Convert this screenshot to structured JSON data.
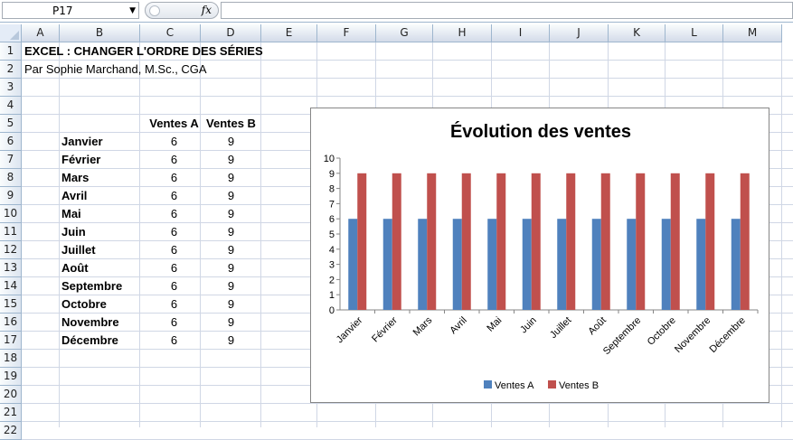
{
  "formula_bar": {
    "name_box": "P17",
    "fx_label": "fx",
    "formula": ""
  },
  "columns": [
    "A",
    "B",
    "C",
    "D",
    "E",
    "F",
    "G",
    "H",
    "I",
    "J",
    "K",
    "L",
    "M"
  ],
  "rows": [
    "1",
    "2",
    "3",
    "4",
    "5",
    "6",
    "7",
    "8",
    "9",
    "10",
    "11",
    "12",
    "13",
    "14",
    "15",
    "16",
    "17",
    "18",
    "19",
    "20",
    "21",
    "22"
  ],
  "sheet": {
    "title": "EXCEL : CHANGER L'ORDRE DES SÉRIES",
    "author": "Par Sophie Marchand, M.Sc., CGA",
    "header_a": "Ventes A",
    "header_b": "Ventes B",
    "table": [
      {
        "month": "Janvier",
        "a": "6",
        "b": "9"
      },
      {
        "month": "Février",
        "a": "6",
        "b": "9"
      },
      {
        "month": "Mars",
        "a": "6",
        "b": "9"
      },
      {
        "month": "Avril",
        "a": "6",
        "b": "9"
      },
      {
        "month": "Mai",
        "a": "6",
        "b": "9"
      },
      {
        "month": "Juin",
        "a": "6",
        "b": "9"
      },
      {
        "month": "Juillet",
        "a": "6",
        "b": "9"
      },
      {
        "month": "Août",
        "a": "6",
        "b": "9"
      },
      {
        "month": "Septembre",
        "a": "6",
        "b": "9"
      },
      {
        "month": "Octobre",
        "a": "6",
        "b": "9"
      },
      {
        "month": "Novembre",
        "a": "6",
        "b": "9"
      },
      {
        "month": "Décembre",
        "a": "6",
        "b": "9"
      }
    ]
  },
  "colors": {
    "series_a": "#4f81bd",
    "series_b": "#c0504d"
  },
  "chart_data": {
    "type": "bar",
    "title": "Évolution des ventes",
    "categories": [
      "Janvier",
      "Février",
      "Mars",
      "Avril",
      "Mai",
      "Juin",
      "Juillet",
      "Août",
      "Septembre",
      "Octobre",
      "Novembre",
      "Décembre"
    ],
    "series": [
      {
        "name": "Ventes A",
        "values": [
          6,
          6,
          6,
          6,
          6,
          6,
          6,
          6,
          6,
          6,
          6,
          6
        ]
      },
      {
        "name": "Ventes B",
        "values": [
          9,
          9,
          9,
          9,
          9,
          9,
          9,
          9,
          9,
          9,
          9,
          9
        ]
      }
    ],
    "ylim": [
      0,
      10
    ],
    "yticks": [
      "0",
      "1",
      "2",
      "3",
      "4",
      "5",
      "6",
      "7",
      "8",
      "9",
      "10"
    ],
    "grid": false,
    "legend": "bottom"
  }
}
